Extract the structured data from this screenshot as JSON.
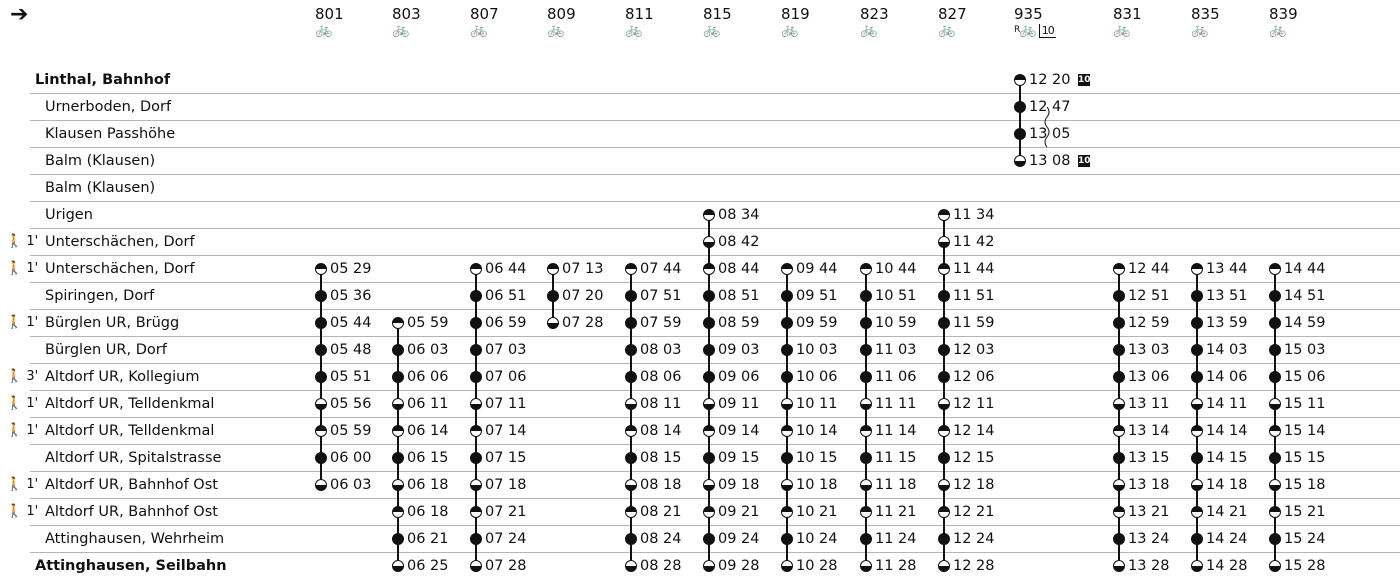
{
  "header": {
    "arrow": "➔"
  },
  "trips": [
    {
      "number": "801",
      "bike": "🚲"
    },
    {
      "number": "803",
      "bike": "🚲"
    },
    {
      "number": "807",
      "bike": "🚲"
    },
    {
      "number": "809",
      "bike": "🚲"
    },
    {
      "number": "811",
      "bike": "🚲"
    },
    {
      "number": "815",
      "bike": "🚲"
    },
    {
      "number": "819",
      "bike": "🚲"
    },
    {
      "number": "823",
      "bike": "🚲"
    },
    {
      "number": "827",
      "bike": "🚲"
    },
    {
      "number": "935",
      "bike": "🚲",
      "reservation": "R",
      "note": "10"
    },
    {
      "number": "831",
      "bike": "🚲"
    },
    {
      "number": "835",
      "bike": "🚲"
    },
    {
      "number": "839",
      "bike": "🚲"
    }
  ],
  "stops": [
    {
      "name": "Linthal, Bahnhof",
      "bold": true,
      "walk": ""
    },
    {
      "name": "Urnerboden, Dorf",
      "bold": false,
      "walk": ""
    },
    {
      "name": "Klausen Passhöhe",
      "bold": false,
      "walk": ""
    },
    {
      "name": "Balm (Klausen)",
      "bold": false,
      "walk": ""
    },
    {
      "name": "Balm (Klausen)",
      "bold": false,
      "walk": ""
    },
    {
      "name": "Urigen",
      "bold": false,
      "walk": ""
    },
    {
      "name": "Unterschächen, Dorf",
      "bold": false,
      "walk": "🚶 1'"
    },
    {
      "name": "Unterschächen, Dorf",
      "bold": false,
      "walk": "🚶 1'"
    },
    {
      "name": "Spiringen, Dorf",
      "bold": false,
      "walk": ""
    },
    {
      "name": "Bürglen UR, Brügg",
      "bold": false,
      "walk": "🚶 1'"
    },
    {
      "name": "Bürglen UR, Dorf",
      "bold": false,
      "walk": ""
    },
    {
      "name": "Altdorf UR, Kollegium",
      "bold": false,
      "walk": "🚶 3'"
    },
    {
      "name": "Altdorf UR, Telldenkmal",
      "bold": false,
      "walk": "🚶 1'"
    },
    {
      "name": "Altdorf UR, Telldenkmal",
      "bold": false,
      "walk": "🚶 1'"
    },
    {
      "name": "Altdorf UR, Spitalstrasse",
      "bold": false,
      "walk": ""
    },
    {
      "name": "Altdorf UR, Bahnhof Ost",
      "bold": false,
      "walk": "🚶 1'"
    },
    {
      "name": "Altdorf UR, Bahnhof Ost",
      "bold": false,
      "walk": "🚶 1'"
    },
    {
      "name": "Attinghausen, Wehrheim",
      "bold": false,
      "walk": ""
    },
    {
      "name": "Attinghausen, Seilbahn",
      "bold": true,
      "walk": ""
    }
  ],
  "times": [
    [
      null,
      null,
      null,
      null,
      null,
      null,
      null,
      null,
      null,
      "12 20",
      null,
      null,
      null
    ],
    [
      null,
      null,
      null,
      null,
      null,
      null,
      null,
      null,
      null,
      "12 47",
      null,
      null,
      null
    ],
    [
      null,
      null,
      null,
      null,
      null,
      null,
      null,
      null,
      null,
      "13 05",
      null,
      null,
      null
    ],
    [
      null,
      null,
      null,
      null,
      null,
      null,
      null,
      null,
      null,
      "13 08",
      null,
      null,
      null
    ],
    [
      null,
      null,
      null,
      null,
      null,
      null,
      null,
      null,
      null,
      null,
      null,
      null,
      null
    ],
    [
      null,
      null,
      null,
      null,
      null,
      "08 34",
      null,
      null,
      "11 34",
      null,
      null,
      null,
      null
    ],
    [
      null,
      null,
      null,
      null,
      null,
      "08 42",
      null,
      null,
      "11 42",
      null,
      null,
      null,
      null
    ],
    [
      "05 29",
      null,
      "06 44",
      "07 13",
      "07 44",
      "08 44",
      "09 44",
      "10 44",
      "11 44",
      null,
      "12 44",
      "13 44",
      "14 44"
    ],
    [
      "05 36",
      null,
      "06 51",
      "07 20",
      "07 51",
      "08 51",
      "09 51",
      "10 51",
      "11 51",
      null,
      "12 51",
      "13 51",
      "14 51"
    ],
    [
      "05 44",
      "05 59",
      "06 59",
      "07 28",
      "07 59",
      "08 59",
      "09 59",
      "10 59",
      "11 59",
      null,
      "12 59",
      "13 59",
      "14 59"
    ],
    [
      "05 48",
      "06 03",
      "07 03",
      null,
      "08 03",
      "09 03",
      "10 03",
      "11 03",
      "12 03",
      null,
      "13 03",
      "14 03",
      "15 03"
    ],
    [
      "05 51",
      "06 06",
      "07 06",
      null,
      "08 06",
      "09 06",
      "10 06",
      "11 06",
      "12 06",
      null,
      "13 06",
      "14 06",
      "15 06"
    ],
    [
      "05 56",
      "06 11",
      "07 11",
      null,
      "08 11",
      "09 11",
      "10 11",
      "11 11",
      "12 11",
      null,
      "13 11",
      "14 11",
      "15 11"
    ],
    [
      "05 59",
      "06 14",
      "07 14",
      null,
      "08 14",
      "09 14",
      "10 14",
      "11 14",
      "12 14",
      null,
      "13 14",
      "14 14",
      "15 14"
    ],
    [
      "06 00",
      "06 15",
      "07 15",
      null,
      "08 15",
      "09 15",
      "10 15",
      "11 15",
      "12 15",
      null,
      "13 15",
      "14 15",
      "15 15"
    ],
    [
      "06 03",
      "06 18",
      "07 18",
      null,
      "08 18",
      "09 18",
      "10 18",
      "11 18",
      "12 18",
      null,
      "13 18",
      "14 18",
      "15 18"
    ],
    [
      null,
      "06 18",
      "07 21",
      null,
      "08 21",
      "09 21",
      "10 21",
      "11 21",
      "12 21",
      null,
      "13 21",
      "14 21",
      "15 21"
    ],
    [
      null,
      "06 21",
      "07 24",
      null,
      "08 24",
      "09 24",
      "10 24",
      "11 24",
      "12 24",
      null,
      "13 24",
      "14 24",
      "15 24"
    ],
    [
      null,
      "06 25",
      "07 28",
      null,
      "08 28",
      "09 28",
      "10 28",
      "11 28",
      "12 28",
      null,
      "13 28",
      "14 28",
      "15 28"
    ]
  ],
  "markers": {
    "10": "10",
    "935_marked_rows": [
      0,
      3
    ]
  }
}
